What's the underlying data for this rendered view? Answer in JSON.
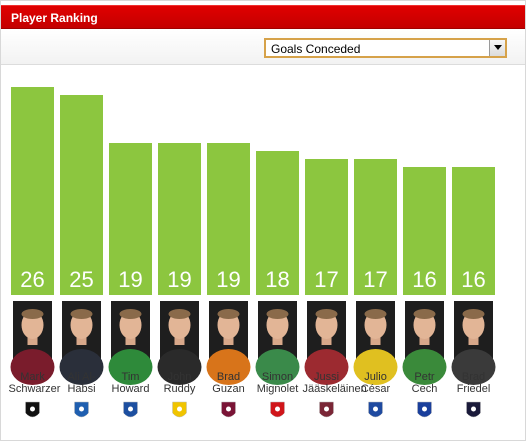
{
  "header": {
    "title": "Player Ranking"
  },
  "filter": {
    "selected": "Goals Conceded"
  },
  "chart_data": {
    "type": "bar",
    "title": "Player Ranking",
    "metric": "Goals Conceded",
    "categories": [
      "Mark Schwarzer",
      "Ali Al-Habsi",
      "Tim Howard",
      "John Ruddy",
      "Brad Guzan",
      "Simon Mignolet",
      "Jussi Jääskeläinen",
      "Julio César",
      "Petr Cech",
      "Brad Friedel"
    ],
    "labels": [
      "Mark\nSchwarzer",
      "Ali Al-\nHabsi",
      "Tim\nHoward",
      "John\nRuddy",
      "Brad\nGuzan",
      "Simon\nMignolet",
      "Jussi\nJääskeläinen",
      "Julio\nCésar",
      "Petr\nCech",
      "Brad\nFriedel"
    ],
    "values": [
      26,
      25,
      19,
      19,
      19,
      18,
      17,
      17,
      16,
      16
    ],
    "ylim": [
      0,
      26
    ],
    "bar_color": "#8cc63f",
    "value_label_color": "#ffffff",
    "clubs": [
      "fulham-crest",
      "wigan-crest",
      "everton-crest",
      "norwich-crest",
      "aston-villa-crest",
      "sunderland-crest",
      "west-ham-crest",
      "qpr-crest",
      "chelsea-crest",
      "tottenham-crest"
    ],
    "club_colors": [
      "#111111",
      "#1f5fb0",
      "#1d4fa0",
      "#f0c400",
      "#7a1436",
      "#d0151a",
      "#7a2636",
      "#1f4aa0",
      "#1a3f9c",
      "#1a1a3a"
    ],
    "photo_shirt_colors": [
      "#7a1c2c",
      "#2a2f3a",
      "#2e8a3a",
      "#2a2a2a",
      "#d8741a",
      "#3a8a4a",
      "#9c2a30",
      "#e0c020",
      "#3a8a3a",
      "#3a3a3a"
    ]
  }
}
